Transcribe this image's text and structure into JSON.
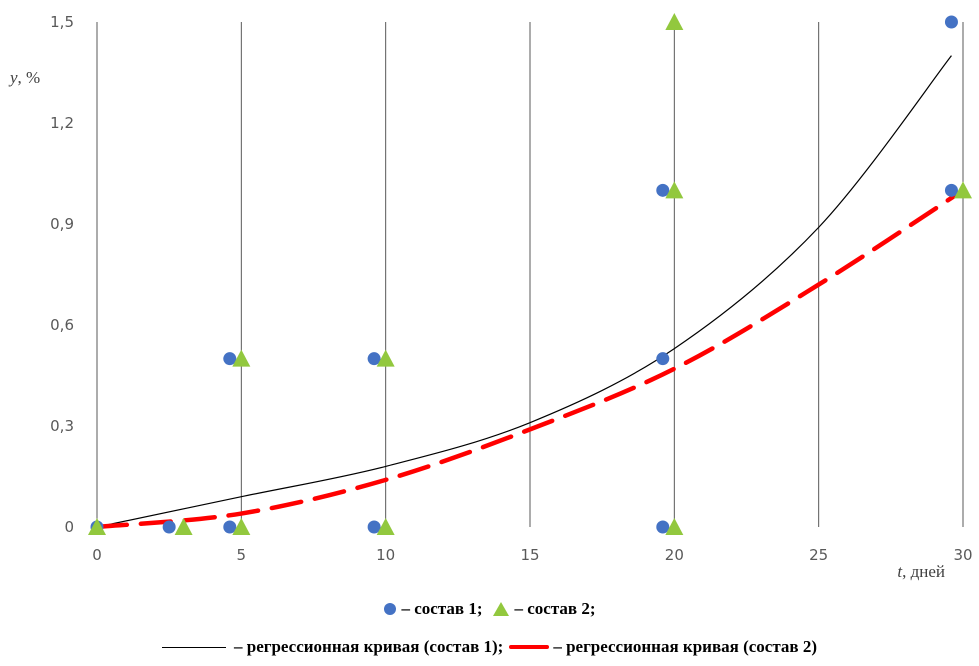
{
  "chart_data": {
    "type": "scatter",
    "title": "",
    "xlabel": "t, дней",
    "ylabel": "y, %",
    "xlim": [
      0,
      30
    ],
    "ylim": [
      0,
      1.5
    ],
    "x_ticks": [
      "0",
      "5",
      "10",
      "15",
      "20",
      "25",
      "30"
    ],
    "y_ticks": [
      "0",
      "0,3",
      "0,6",
      "0,9",
      "1,2",
      "1,5"
    ],
    "grid": "vertical",
    "series": [
      {
        "name": "состав 1",
        "marker": "circle",
        "color": "#4472c4",
        "points": [
          [
            0,
            0
          ],
          [
            2.5,
            0
          ],
          [
            4.6,
            0
          ],
          [
            4.6,
            0.5
          ],
          [
            9.6,
            0
          ],
          [
            9.6,
            0.5
          ],
          [
            19.6,
            0
          ],
          [
            19.6,
            0.5
          ],
          [
            19.6,
            1.0
          ],
          [
            29.6,
            1.0
          ],
          [
            29.6,
            1.5
          ]
        ]
      },
      {
        "name": "состав 2",
        "marker": "triangle",
        "color": "#92c83e",
        "points": [
          [
            0,
            0
          ],
          [
            3,
            0
          ],
          [
            5,
            0
          ],
          [
            5,
            0.5
          ],
          [
            10,
            0
          ],
          [
            10,
            0.5
          ],
          [
            20,
            0
          ],
          [
            20,
            1.0
          ],
          [
            20,
            1.5
          ],
          [
            30,
            1.0
          ]
        ]
      },
      {
        "name": "регрессионная кривая (состав 1)",
        "type": "line",
        "style": "solid-thin",
        "color": "#000000",
        "x": [
          0,
          5,
          10,
          15,
          20,
          25,
          29.6
        ],
        "y": [
          0,
          0.09,
          0.18,
          0.31,
          0.53,
          0.89,
          1.4
        ]
      },
      {
        "name": "регрессионная кривая (состав 2)",
        "type": "line",
        "style": "dashed-thick",
        "color": "#ff0000",
        "x": [
          0,
          5,
          10,
          15,
          20,
          25,
          30
        ],
        "y": [
          0,
          0.04,
          0.14,
          0.29,
          0.47,
          0.72,
          1.0
        ]
      }
    ]
  },
  "legend": {
    "row1_a": "– состав 1;",
    "row1_b": "– состав 2;",
    "row2_a": "– регрессионная кривая (состав 1);",
    "row2_b": "– регрессионная кривая (состав 2)"
  }
}
